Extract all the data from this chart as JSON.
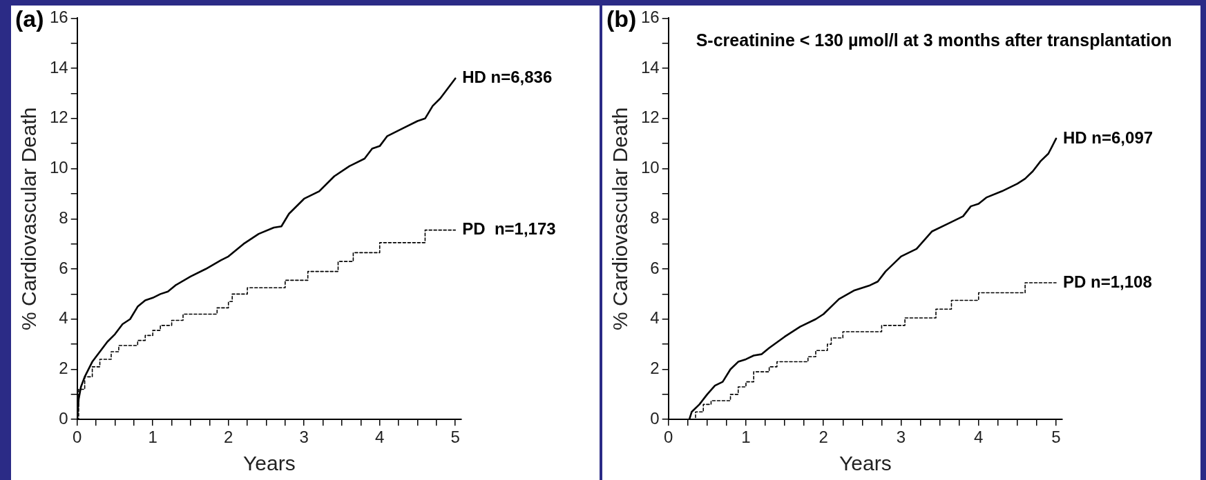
{
  "chart_data": [
    {
      "type": "line",
      "title": "(a)",
      "xlabel": "Years",
      "ylabel": "% Cardiovascular Death",
      "xlim": [
        0,
        5.08
      ],
      "ylim": [
        0,
        16
      ],
      "xticks": [
        0,
        {
          "value": 0.25,
          "label": null
        },
        {
          "value": 0.5,
          "label": null
        },
        {
          "value": 0.75,
          "label": null
        },
        1,
        {
          "value": 1.25,
          "label": null
        },
        {
          "value": 1.5,
          "label": null
        },
        {
          "value": 1.75,
          "label": null
        },
        2,
        {
          "value": 2.25,
          "label": null
        },
        {
          "value": 2.5,
          "label": null
        },
        {
          "value": 2.75,
          "label": null
        },
        3,
        {
          "value": 3.25,
          "label": null
        },
        {
          "value": 3.5,
          "label": null
        },
        {
          "value": 3.75,
          "label": null
        },
        4,
        {
          "value": 4.25,
          "label": null
        },
        {
          "value": 4.5,
          "label": null
        },
        {
          "value": 4.75,
          "label": null
        },
        5
      ],
      "yticks": [
        0,
        {
          "value": 1,
          "label": null
        },
        2,
        {
          "value": 3,
          "label": null
        },
        4,
        {
          "value": 5,
          "label": null
        },
        6,
        {
          "value": 7,
          "label": null
        },
        8,
        {
          "value": 9,
          "label": null
        },
        10,
        {
          "value": 11,
          "label": null
        },
        12,
        {
          "value": 13,
          "label": null
        },
        14,
        {
          "value": 15,
          "label": null
        },
        16
      ],
      "grid": false,
      "legend": false,
      "marker": "none",
      "series": [
        {
          "name": "HD n=6,836",
          "type": "line",
          "line_style": "solid",
          "color": "#000000",
          "x": [
            0,
            0.02,
            0.05,
            0.1,
            0.2,
            0.3,
            0.4,
            0.5,
            0.6,
            0.7,
            0.8,
            0.9,
            1.0,
            1.1,
            1.2,
            1.3,
            1.5,
            1.7,
            1.9,
            2.0,
            2.2,
            2.4,
            2.6,
            2.7,
            2.8,
            3.0,
            3.2,
            3.4,
            3.6,
            3.8,
            3.9,
            4.0,
            4.1,
            4.3,
            4.5,
            4.6,
            4.7,
            4.8,
            4.9,
            5.0
          ],
          "values": [
            0,
            0.8,
            1.3,
            1.7,
            2.3,
            2.7,
            3.1,
            3.4,
            3.8,
            4.0,
            4.5,
            4.75,
            4.85,
            5.0,
            5.1,
            5.35,
            5.7,
            6.0,
            6.35,
            6.5,
            7.0,
            7.4,
            7.65,
            7.7,
            8.2,
            8.8,
            9.1,
            9.7,
            10.1,
            10.4,
            10.8,
            10.9,
            11.3,
            11.6,
            11.9,
            12.0,
            12.5,
            12.8,
            13.2,
            13.6
          ]
        },
        {
          "name": "PD  n=1,173",
          "type": "step",
          "line_style": "dashed",
          "color": "#000000",
          "x": [
            0,
            0.02,
            0.1,
            0.2,
            0.3,
            0.45,
            0.55,
            0.8,
            0.9,
            1.0,
            1.1,
            1.25,
            1.4,
            1.85,
            2.0,
            2.05,
            2.25,
            2.75,
            3.05,
            3.45,
            3.65,
            4.0,
            4.6,
            5.0
          ],
          "values": [
            0,
            1.2,
            1.7,
            2.1,
            2.4,
            2.7,
            2.95,
            3.15,
            3.35,
            3.55,
            3.75,
            3.95,
            4.2,
            4.45,
            4.7,
            5.0,
            5.25,
            5.55,
            5.9,
            6.3,
            6.65,
            7.05,
            7.55,
            7.55
          ]
        }
      ]
    },
    {
      "type": "line",
      "title": "(b)",
      "subtitle": "S-creatinine < 130 µmol/l at 3 months after transplantation",
      "xlabel": "Years",
      "ylabel": "% Cardiovascular Death",
      "xlim": [
        0,
        5.08
      ],
      "ylim": [
        0,
        16
      ],
      "xticks": [
        0,
        {
          "value": 0.25,
          "label": null
        },
        {
          "value": 0.5,
          "label": null
        },
        {
          "value": 0.75,
          "label": null
        },
        1,
        {
          "value": 1.25,
          "label": null
        },
        {
          "value": 1.5,
          "label": null
        },
        {
          "value": 1.75,
          "label": null
        },
        2,
        {
          "value": 2.25,
          "label": null
        },
        {
          "value": 2.5,
          "label": null
        },
        {
          "value": 2.75,
          "label": null
        },
        3,
        {
          "value": 3.25,
          "label": null
        },
        {
          "value": 3.5,
          "label": null
        },
        {
          "value": 3.75,
          "label": null
        },
        4,
        {
          "value": 4.25,
          "label": null
        },
        {
          "value": 4.5,
          "label": null
        },
        {
          "value": 4.75,
          "label": null
        },
        5
      ],
      "yticks": [
        0,
        {
          "value": 1,
          "label": null
        },
        2,
        {
          "value": 3,
          "label": null
        },
        4,
        {
          "value": 5,
          "label": null
        },
        6,
        {
          "value": 7,
          "label": null
        },
        8,
        {
          "value": 9,
          "label": null
        },
        10,
        {
          "value": 11,
          "label": null
        },
        12,
        {
          "value": 13,
          "label": null
        },
        14,
        {
          "value": 15,
          "label": null
        },
        16
      ],
      "grid": false,
      "legend": false,
      "marker": "none",
      "series": [
        {
          "name": "HD n=6,097",
          "type": "line",
          "line_style": "solid",
          "color": "#000000",
          "x": [
            0,
            0.27,
            0.3,
            0.4,
            0.5,
            0.6,
            0.7,
            0.8,
            0.9,
            1.0,
            1.1,
            1.2,
            1.3,
            1.5,
            1.7,
            1.9,
            2.0,
            2.2,
            2.4,
            2.6,
            2.7,
            2.8,
            3.0,
            3.2,
            3.4,
            3.6,
            3.8,
            3.9,
            4.0,
            4.1,
            4.3,
            4.5,
            4.6,
            4.7,
            4.8,
            4.9,
            5.0
          ],
          "values": [
            0,
            0,
            0.3,
            0.6,
            1.0,
            1.35,
            1.5,
            2.0,
            2.3,
            2.4,
            2.55,
            2.6,
            2.85,
            3.3,
            3.7,
            4.0,
            4.2,
            4.8,
            5.15,
            5.35,
            5.5,
            5.9,
            6.5,
            6.8,
            7.5,
            7.8,
            8.1,
            8.5,
            8.6,
            8.85,
            9.1,
            9.4,
            9.6,
            9.9,
            10.3,
            10.6,
            11.2
          ]
        },
        {
          "name": "PD n=1,108",
          "type": "step",
          "line_style": "dashed",
          "color": "#000000",
          "x": [
            0,
            0.3,
            0.35,
            0.45,
            0.55,
            0.8,
            0.9,
            1.0,
            1.1,
            1.3,
            1.4,
            1.8,
            1.9,
            2.05,
            2.1,
            2.25,
            2.75,
            3.05,
            3.45,
            3.65,
            4.0,
            4.6,
            5.0
          ],
          "values": [
            0,
            0,
            0.3,
            0.6,
            0.75,
            1.0,
            1.3,
            1.5,
            1.9,
            2.1,
            2.3,
            2.5,
            2.75,
            3.0,
            3.25,
            3.5,
            3.75,
            4.05,
            4.4,
            4.75,
            5.05,
            5.45,
            5.45
          ]
        }
      ]
    }
  ]
}
